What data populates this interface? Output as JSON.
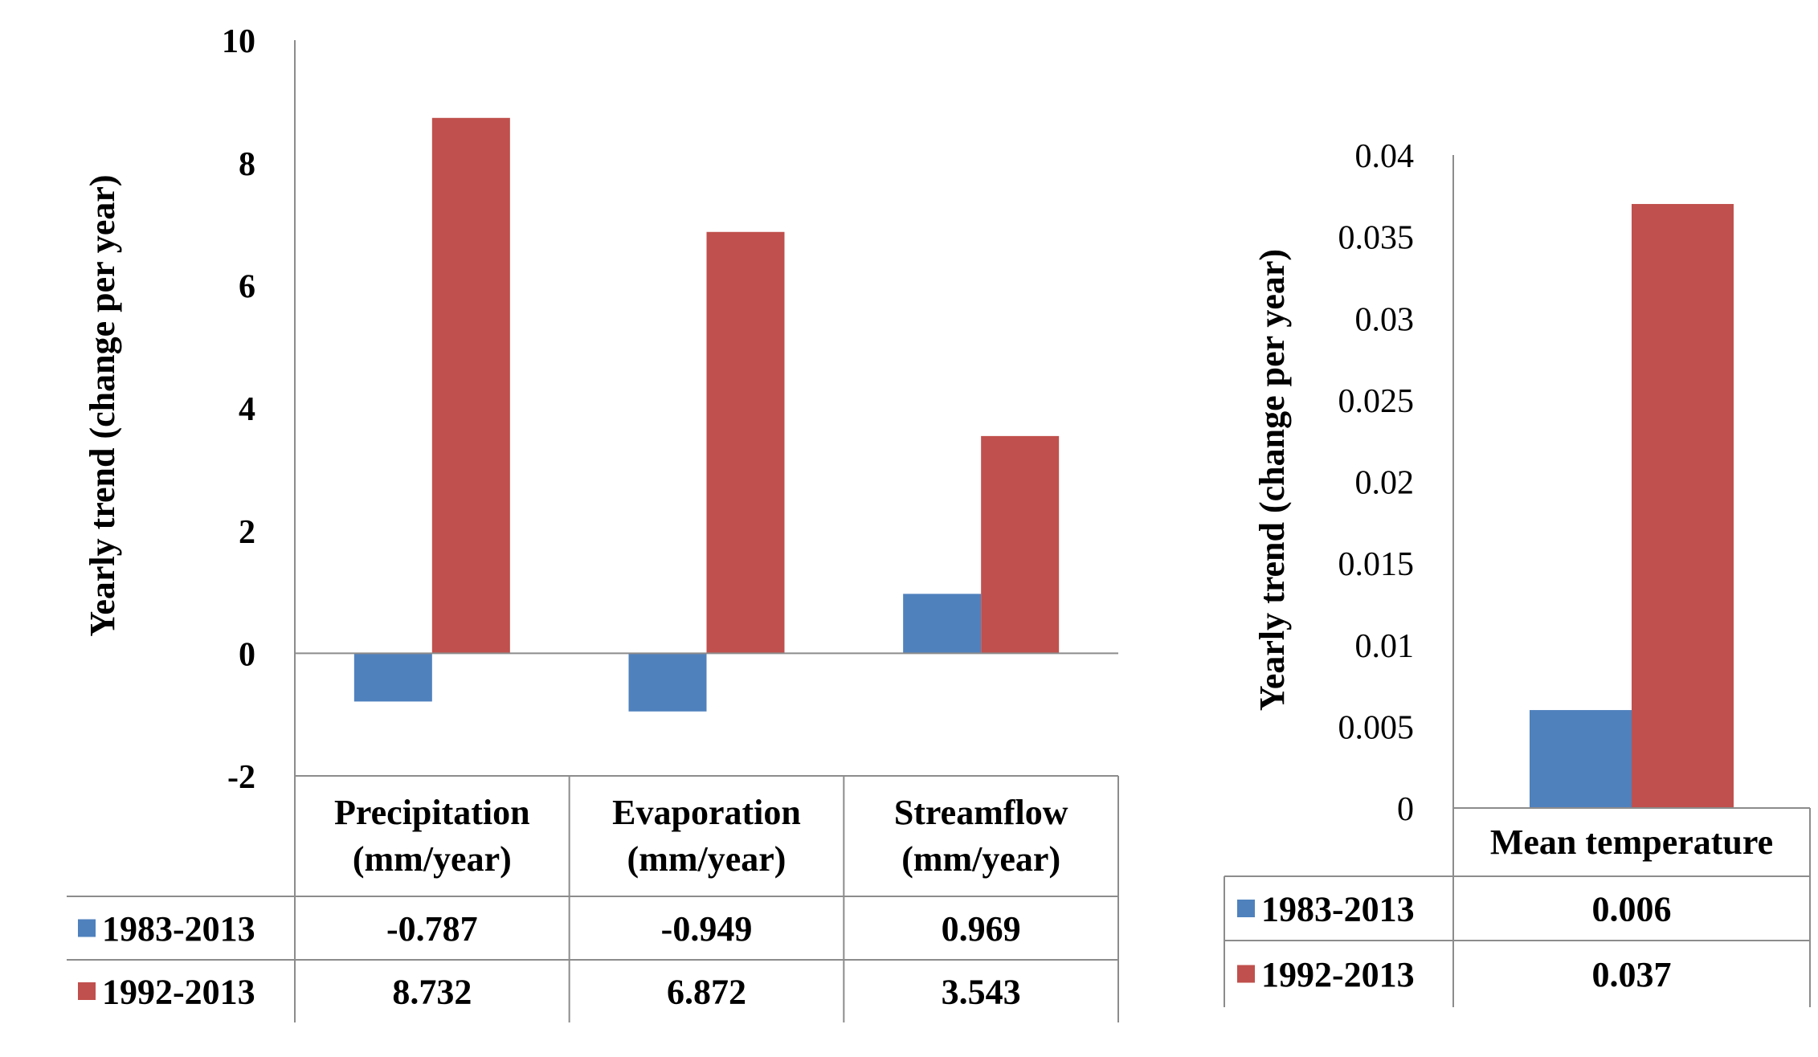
{
  "chart_data": [
    {
      "type": "bar",
      "title": "",
      "xlabel": "",
      "ylabel": "Yearly trend (change per year)",
      "ylim": [
        -2,
        10
      ],
      "yticks": [
        "-2",
        "0",
        "2",
        "4",
        "6",
        "8",
        "10"
      ],
      "categories": [
        [
          "Precipitation",
          "(mm/year)"
        ],
        [
          "Evaporation",
          "(mm/year)"
        ],
        [
          "Streamflow",
          "(mm/year)"
        ]
      ],
      "series": [
        {
          "name": "1983-2013",
          "color": "#4f81bd",
          "values": [
            -0.787,
            -0.949,
            0.969
          ],
          "labels": [
            "-0.787",
            "-0.949",
            "0.969"
          ]
        },
        {
          "name": "1992-2013",
          "color": "#c0504d",
          "values": [
            8.732,
            6.872,
            3.543
          ],
          "labels": [
            "8.732",
            "6.872",
            "3.543"
          ]
        }
      ],
      "grid": false,
      "legend": "data-table"
    },
    {
      "type": "bar",
      "title": "",
      "xlabel": "",
      "ylabel": "Yearly trend (change per year)",
      "ylim": [
        0,
        0.04
      ],
      "yticks": [
        "0",
        "0.005",
        "0.01",
        "0.015",
        "0.02",
        "0.025",
        "0.03",
        "0.035",
        "0.04"
      ],
      "categories": [
        [
          "Mean temperature"
        ]
      ],
      "series": [
        {
          "name": "1983-2013",
          "color": "#4f81bd",
          "values": [
            0.006
          ],
          "labels": [
            "0.006"
          ]
        },
        {
          "name": "1992-2013",
          "color": "#c0504d",
          "values": [
            0.037
          ],
          "labels": [
            "0.037"
          ]
        }
      ],
      "grid": false,
      "legend": "data-table"
    }
  ]
}
